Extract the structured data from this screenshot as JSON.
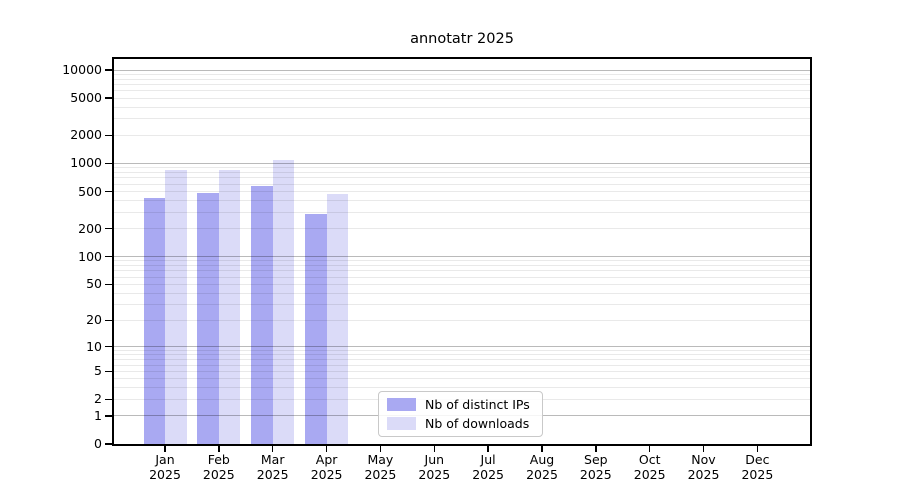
{
  "chart_data": {
    "type": "bar",
    "title": "annotatr 2025",
    "categories": [
      "Jan",
      "Feb",
      "Mar",
      "Apr",
      "May",
      "Jun",
      "Jul",
      "Aug",
      "Sep",
      "Oct",
      "Nov",
      "Dec"
    ],
    "year": "2025",
    "series": [
      {
        "name": "Nb of distinct IPs",
        "color": "#a9a9f2",
        "values": [
          430,
          480,
          580,
          290,
          0,
          0,
          0,
          0,
          0,
          0,
          0,
          0
        ]
      },
      {
        "name": "Nb of downloads",
        "color": "#dbdbf8",
        "values": [
          850,
          850,
          1090,
          470,
          0,
          0,
          0,
          0,
          0,
          0,
          0,
          0
        ]
      }
    ],
    "y_ticks": [
      0,
      1,
      2,
      5,
      10,
      20,
      50,
      100,
      200,
      500,
      1000,
      2000,
      5000,
      10000
    ],
    "y_scale": "log10(v+1)",
    "ylim": [
      0,
      13100
    ],
    "xlabel": "",
    "ylabel": "",
    "grid": {
      "orientation": "horizontal",
      "major_lines": [
        1,
        10,
        100,
        1000,
        10000
      ],
      "minor_lines": [
        2,
        3,
        4,
        5,
        6,
        7,
        8,
        9,
        20,
        30,
        40,
        50,
        60,
        70,
        80,
        90,
        200,
        300,
        400,
        500,
        600,
        700,
        800,
        900,
        2000,
        3000,
        4000,
        5000,
        6000,
        7000,
        8000,
        9000
      ]
    },
    "legend_position": "lower center"
  }
}
